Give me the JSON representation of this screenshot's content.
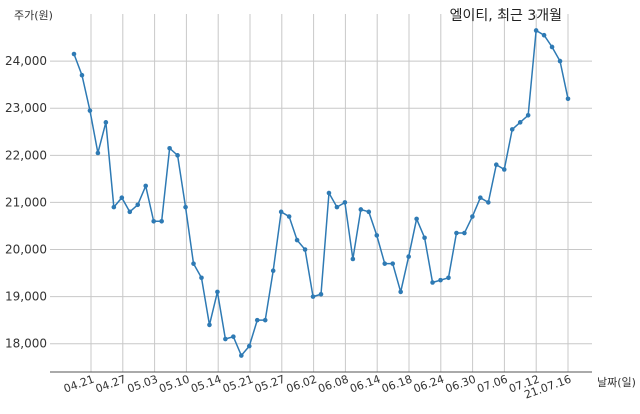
{
  "chart_data": {
    "type": "line",
    "title": "엘이티, 최근 3개월",
    "ylabel": "주가(원)",
    "xlabel": "날짜(일)",
    "ylim": [
      17400,
      25000
    ],
    "y_ticks": [
      18000,
      19000,
      20000,
      21000,
      22000,
      23000,
      24000
    ],
    "y_tick_labels": [
      "18,000",
      "19,000",
      "20,000",
      "21,000",
      "22,000",
      "23,000",
      "24,000"
    ],
    "x_ticks": [
      "04.21",
      "04.27",
      "05.03",
      "05.10",
      "05.14",
      "05.21",
      "05.27",
      "06.02",
      "06.08",
      "06.14",
      "06.18",
      "06.24",
      "06.30",
      "07.06",
      "07.12",
      "21.07.16"
    ],
    "grid": true,
    "line_color": "#2e7ab4",
    "series": [
      {
        "values": [
          24150,
          23700,
          22950,
          22050,
          22700,
          20900,
          21100,
          20800,
          20950,
          21350,
          20600,
          20600,
          22150,
          22000,
          20900,
          19700,
          19400,
          18400,
          19100,
          18100,
          18150,
          17750,
          17950,
          18500,
          18500,
          19550,
          20800,
          20700,
          20200,
          20000,
          19000,
          19050,
          21200,
          20900,
          21000,
          19800,
          20850,
          20800,
          20300,
          19700,
          19700,
          19100,
          19850,
          20650,
          20250,
          19300,
          19350,
          19400,
          20350,
          20350,
          20700,
          21100,
          21000,
          21800,
          21700,
          22550,
          22700,
          22850,
          24650,
          24550,
          24300,
          24000,
          23200
        ]
      }
    ]
  }
}
